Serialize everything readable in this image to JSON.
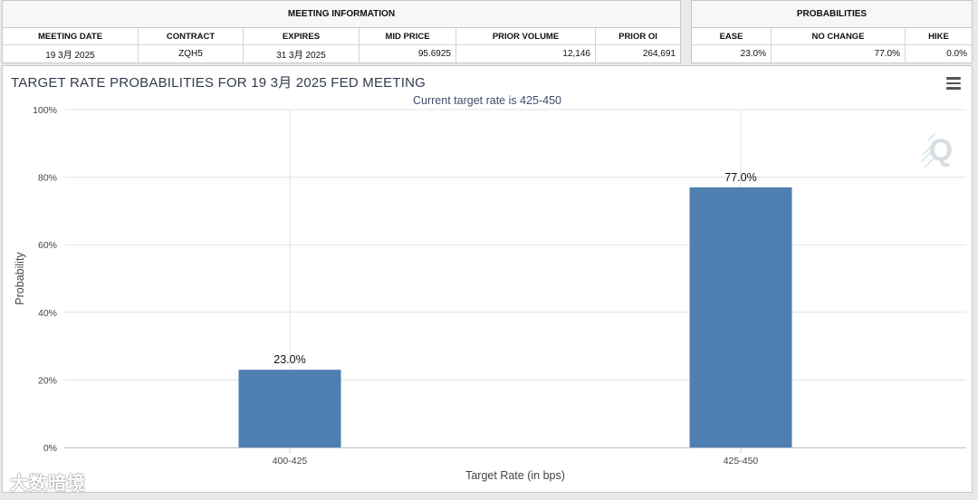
{
  "meeting_info": {
    "header": "MEETING INFORMATION",
    "columns": [
      "MEETING DATE",
      "CONTRACT",
      "EXPIRES",
      "MID PRICE",
      "PRIOR VOLUME",
      "PRIOR OI"
    ],
    "values": [
      "19 3月 2025",
      "ZQH5",
      "31 3月 2025",
      "95.6925",
      "12,146",
      "264,691"
    ]
  },
  "probabilities": {
    "header": "PROBABILITIES",
    "columns": [
      "EASE",
      "NO CHANGE",
      "HIKE"
    ],
    "values": [
      "23.0%",
      "77.0%",
      "0.0%"
    ]
  },
  "chart": {
    "menu_icon": "hamburger-menu-icon",
    "logo_icon": "q-logo-icon",
    "watermark": "大数暗境",
    "bar_color": "#4f7fb1"
  },
  "chart_data": {
    "type": "bar",
    "title": "TARGET RATE PROBABILITIES FOR 19 3月 2025 FED MEETING",
    "subtitle": "Current target rate is 425-450",
    "categories": [
      "400-425",
      "425-450"
    ],
    "values": [
      23.0,
      77.0
    ],
    "data_labels": [
      "23.0%",
      "77.0%"
    ],
    "xlabel": "Target Rate (in bps)",
    "ylabel": "Probability",
    "ylim": [
      0,
      100
    ],
    "yticks": [
      0,
      20,
      40,
      60,
      80,
      100
    ],
    "ytick_labels": [
      "0%",
      "20%",
      "40%",
      "60%",
      "80%",
      "100%"
    ],
    "grid": true,
    "legend": "none"
  }
}
